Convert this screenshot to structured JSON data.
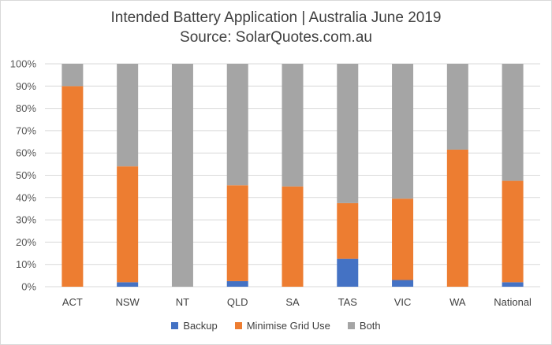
{
  "chart_data": {
    "type": "bar",
    "stacked": true,
    "title": "Intended Battery Application | Australia June 2019",
    "subtitle": "Source: SolarQuotes.com.au",
    "categories": [
      "ACT",
      "NSW",
      "NT",
      "QLD",
      "SA",
      "TAS",
      "VIC",
      "WA",
      "National"
    ],
    "series": [
      {
        "name": "Backup",
        "color": "#4472c4",
        "values": [
          0,
          2,
          0,
          2.5,
          0,
          12.5,
          3,
          0,
          2
        ]
      },
      {
        "name": "Minimise Grid Use",
        "color": "#ed7d31",
        "values": [
          90,
          52,
          0,
          43,
          45,
          25,
          36.5,
          61.5,
          45.5
        ]
      },
      {
        "name": "Both",
        "color": "#a5a5a5",
        "values": [
          10,
          46,
          100,
          54.5,
          55,
          62.5,
          60.5,
          38.5,
          52.5
        ]
      }
    ],
    "ylim": [
      0,
      100
    ],
    "yticks": [
      "0%",
      "10%",
      "20%",
      "30%",
      "40%",
      "50%",
      "60%",
      "70%",
      "80%",
      "90%",
      "100%"
    ],
    "grid": true,
    "legend_position": "bottom"
  }
}
